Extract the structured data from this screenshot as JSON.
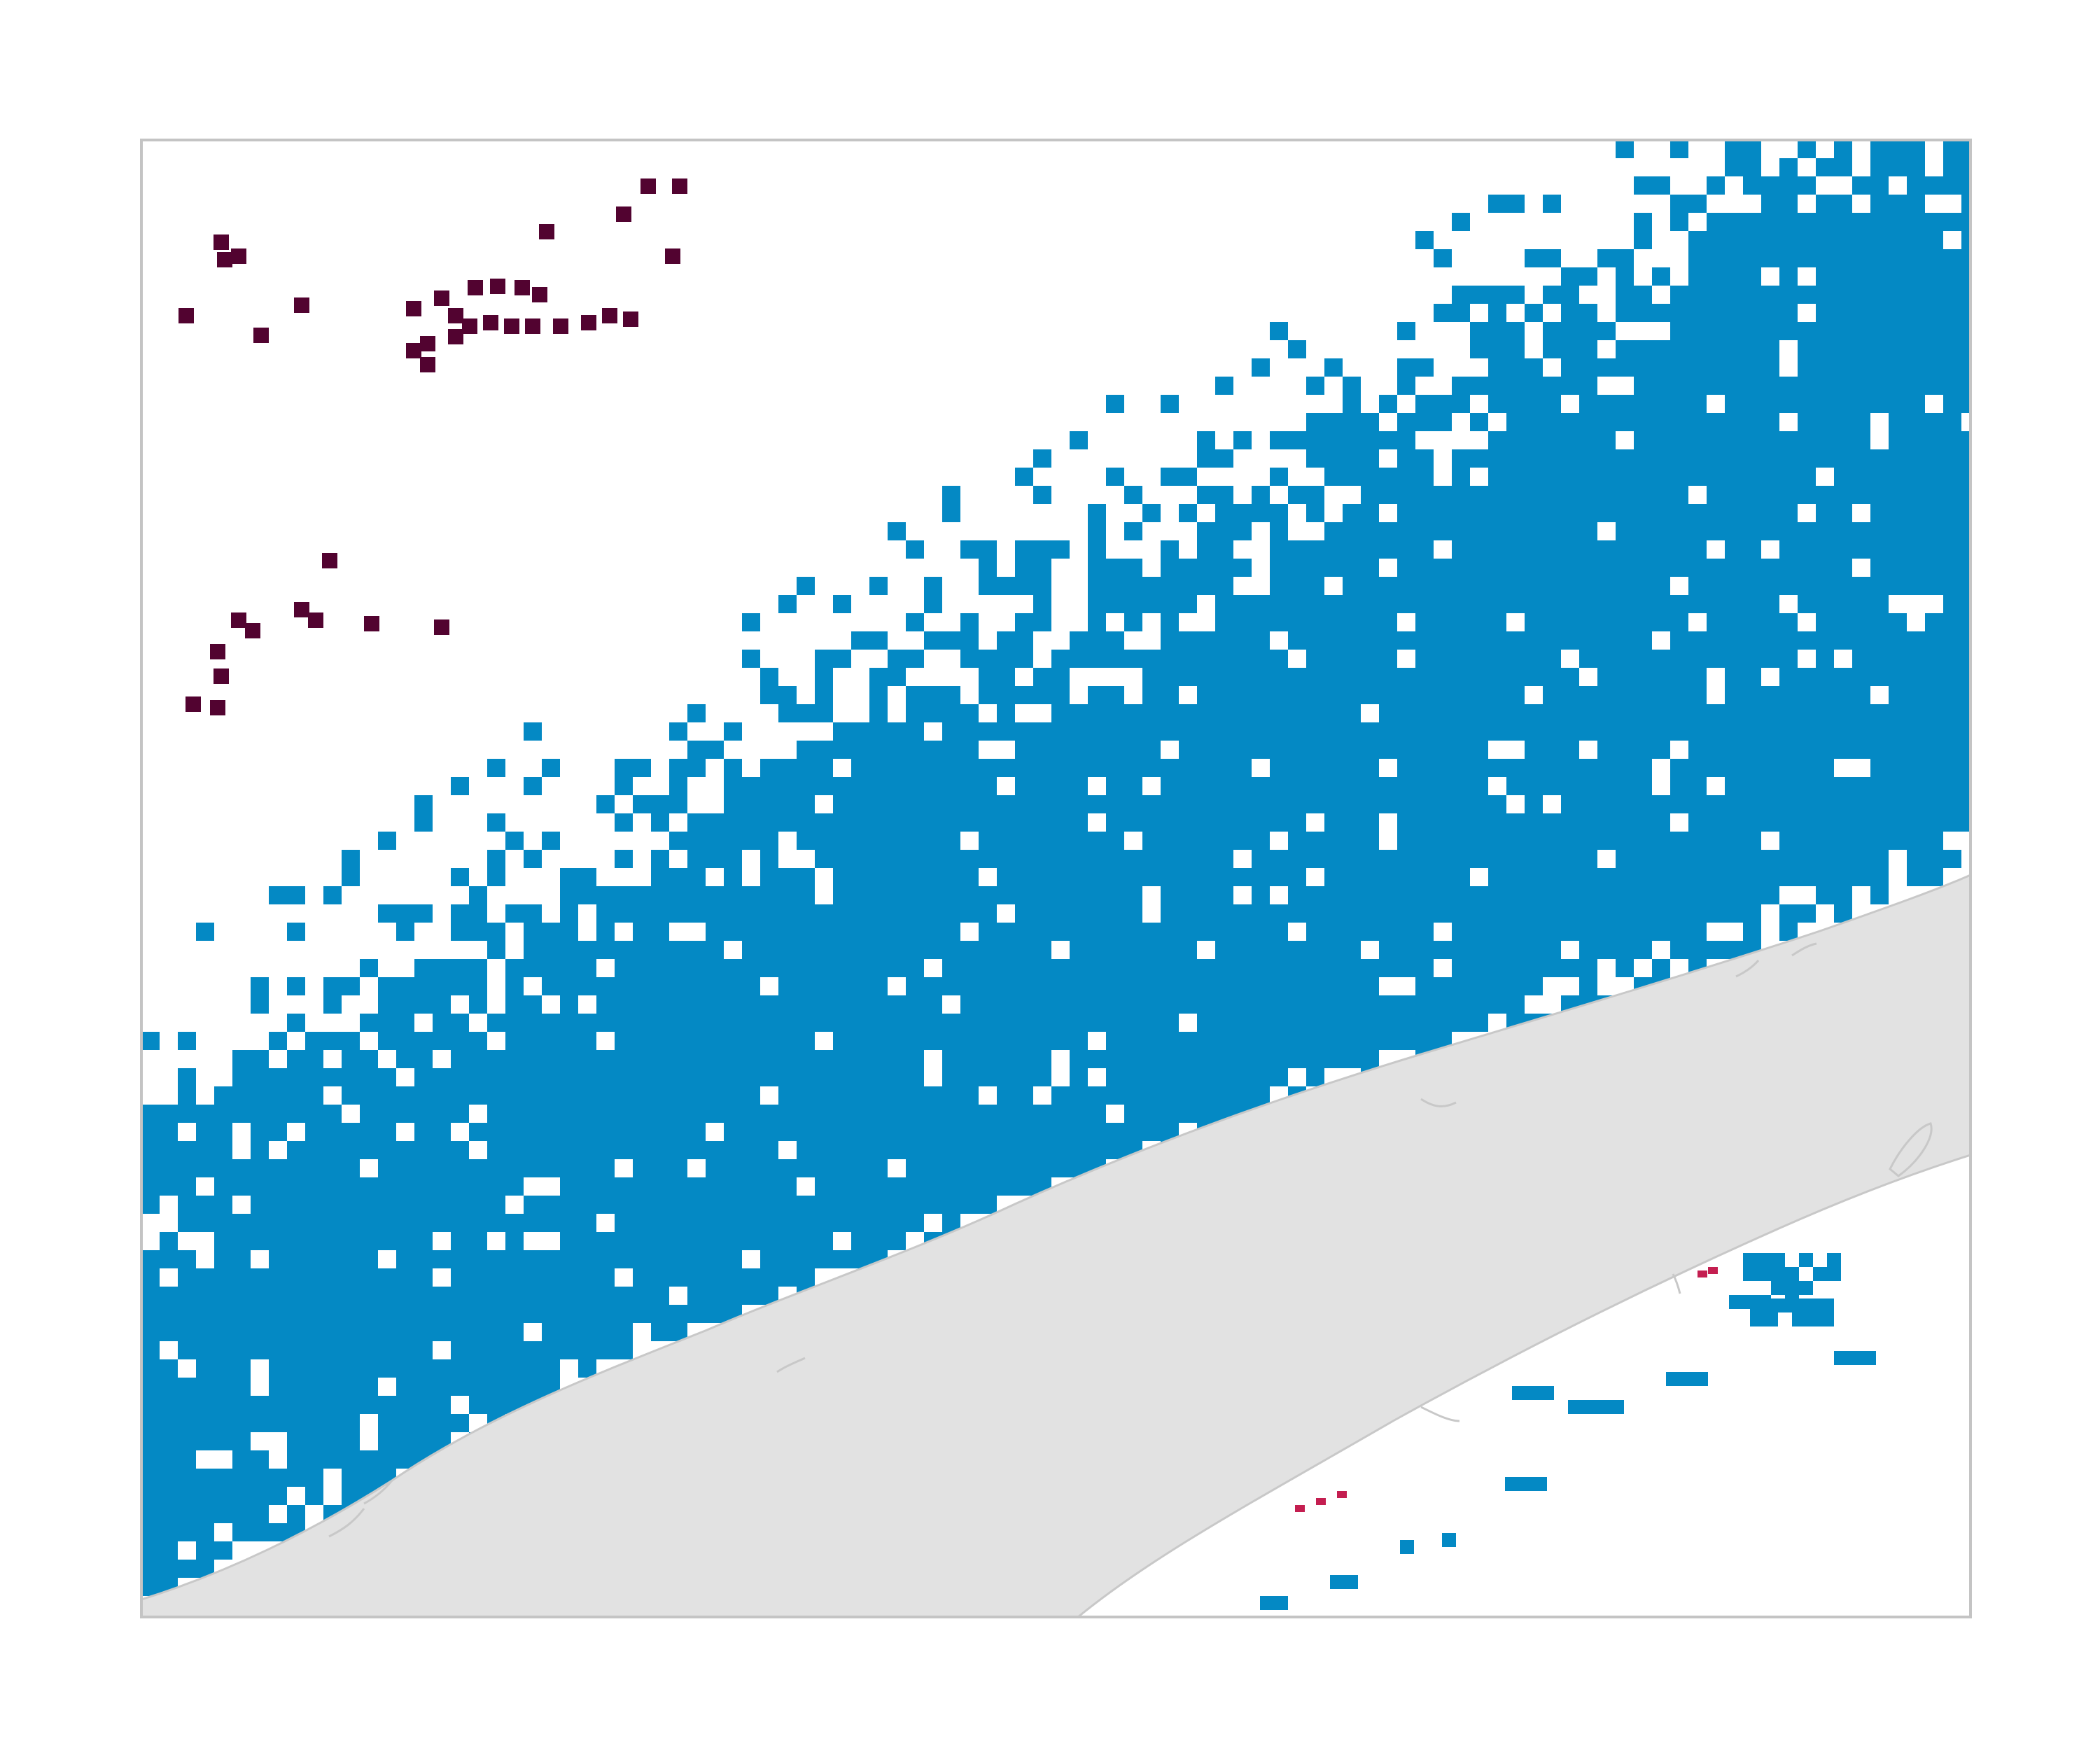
{
  "map": {
    "frame_color": "#c4c4c4",
    "background_color": "#ffffff",
    "land_color": "#e2e2e2",
    "land_outline_color": "#c8c8c8",
    "classes": [
      {
        "id": "cover",
        "color": "#0489c4"
      },
      {
        "id": "dark",
        "color": "#520330"
      },
      {
        "id": "red",
        "color": "#c41e50"
      }
    ],
    "features": [
      "land-mass",
      "island",
      "coastline",
      "grid-cells"
    ]
  }
}
